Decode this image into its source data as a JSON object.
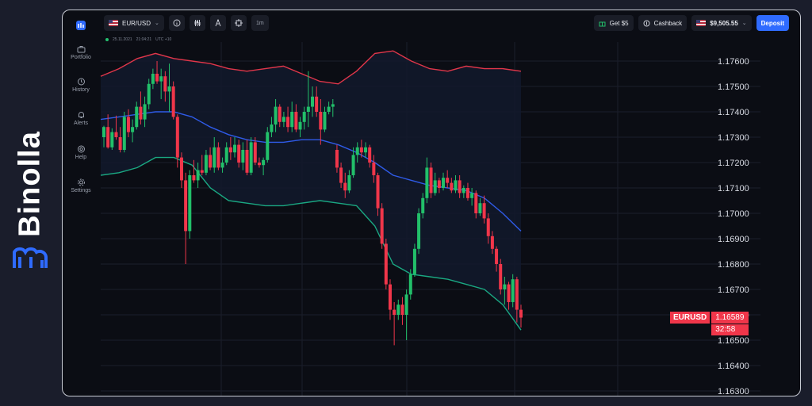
{
  "brand": {
    "name": "Binolla"
  },
  "sidebar": {
    "items": [
      {
        "label": "Portfolio",
        "icon": "briefcase-icon"
      },
      {
        "label": "History",
        "icon": "history-icon"
      },
      {
        "label": "Alerts",
        "icon": "bell-icon"
      },
      {
        "label": "Help",
        "icon": "lifebuoy-icon"
      },
      {
        "label": "Settings",
        "icon": "gear-icon"
      }
    ]
  },
  "toolbar": {
    "asset": "EUR/USD",
    "timeframe": "1m",
    "bonus_label": "Get $5",
    "cashback_label": "Cashback",
    "balance": "$9,505.55",
    "deposit_label": "Deposit"
  },
  "chart_meta": {
    "date": "25.11.2021",
    "time": "21:04:21",
    "timezone": "UTC +10"
  },
  "price_tag": {
    "symbol": "EURUSD",
    "price": "1.16589",
    "timer": "32:58"
  },
  "colors": {
    "up": "#22c06a",
    "down": "#f0364a",
    "upper_band": "#e0364a",
    "middle_band": "#2f5be8",
    "lower_band": "#1aa882",
    "accent": "#2f6bff"
  },
  "chart_data": {
    "type": "candlestick",
    "title": "",
    "y_ticks": [
      "1.17600",
      "1.17500",
      "1.17400",
      "1.17300",
      "1.17200",
      "1.17100",
      "1.17000",
      "1.16900",
      "1.16800",
      "1.16700",
      "1.16600",
      "1.16500",
      "1.16400",
      "1.16300"
    ],
    "ylim": [
      1.1628,
      1.1771
    ],
    "grid": true,
    "candles": [
      [
        1.173,
        1.17345,
        1.1734,
        1.1726
      ],
      [
        1.1734,
        1.1739,
        1.1726,
        1.17255
      ],
      [
        1.1726,
        1.17335,
        1.1732,
        1.1725
      ],
      [
        1.1732,
        1.17385,
        1.173,
        1.1729
      ],
      [
        1.173,
        1.1734,
        1.1725,
        1.1724
      ],
      [
        1.1725,
        1.174,
        1.1738,
        1.1724
      ],
      [
        1.1738,
        1.1741,
        1.1732,
        1.173
      ],
      [
        1.1732,
        1.1737,
        1.1734,
        1.1728
      ],
      [
        1.1734,
        1.1744,
        1.1742,
        1.1733
      ],
      [
        1.1742,
        1.1748,
        1.1737,
        1.1735
      ],
      [
        1.1737,
        1.1746,
        1.1743,
        1.1734
      ],
      [
        1.1743,
        1.1753,
        1.1751,
        1.1741
      ],
      [
        1.1751,
        1.1757,
        1.1755,
        1.1749
      ],
      [
        1.1755,
        1.176,
        1.1752,
        1.1751
      ],
      [
        1.1752,
        1.1757,
        1.1754,
        1.1745
      ],
      [
        1.1754,
        1.1756,
        1.1748,
        1.1744
      ],
      [
        1.1748,
        1.1759,
        1.175,
        1.174
      ],
      [
        1.175,
        1.1752,
        1.1738,
        1.1737
      ],
      [
        1.1738,
        1.1739,
        1.1722,
        1.1718
      ],
      [
        1.1722,
        1.1724,
        1.1713,
        1.171
      ],
      [
        1.1713,
        1.1716,
        1.1693,
        1.168
      ],
      [
        1.1693,
        1.1717,
        1.1715,
        1.169
      ],
      [
        1.1715,
        1.1721,
        1.1713,
        1.1712
      ],
      [
        1.1713,
        1.172,
        1.1717,
        1.171
      ],
      [
        1.1717,
        1.1723,
        1.1716,
        1.1715
      ],
      [
        1.1716,
        1.1725,
        1.1723,
        1.1715
      ],
      [
        1.1723,
        1.1726,
        1.1718,
        1.1717
      ],
      [
        1.1718,
        1.173,
        1.1726,
        1.1716
      ],
      [
        1.1726,
        1.1728,
        1.1718,
        1.1717
      ],
      [
        1.1718,
        1.1722,
        1.172,
        1.1716
      ],
      [
        1.172,
        1.1728,
        1.1726,
        1.1719
      ],
      [
        1.1726,
        1.173,
        1.1724,
        1.1721
      ],
      [
        1.1724,
        1.173,
        1.1727,
        1.1722
      ],
      [
        1.1727,
        1.1729,
        1.172,
        1.1718
      ],
      [
        1.172,
        1.1728,
        1.1725,
        1.1717
      ],
      [
        1.1725,
        1.1729,
        1.1716,
        1.1715
      ],
      [
        1.1716,
        1.173,
        1.1728,
        1.1715
      ],
      [
        1.1728,
        1.173,
        1.172,
        1.1719
      ],
      [
        1.172,
        1.1722,
        1.1719,
        1.1718
      ],
      [
        1.1719,
        1.1722,
        1.1721,
        1.1715
      ],
      [
        1.1721,
        1.1734,
        1.1732,
        1.172
      ],
      [
        1.1732,
        1.1738,
        1.1735,
        1.173
      ],
      [
        1.1735,
        1.1745,
        1.1742,
        1.1732
      ],
      [
        1.1742,
        1.1743,
        1.1736,
        1.1734
      ],
      [
        1.1736,
        1.174,
        1.1738,
        1.1734
      ],
      [
        1.1738,
        1.1742,
        1.1734,
        1.1732
      ],
      [
        1.1734,
        1.1744,
        1.174,
        1.1732
      ],
      [
        1.174,
        1.1743,
        1.1733,
        1.1732
      ],
      [
        1.1733,
        1.1738,
        1.1736,
        1.173
      ],
      [
        1.1736,
        1.1742,
        1.174,
        1.1733
      ],
      [
        1.174,
        1.1756,
        1.1742,
        1.1734
      ],
      [
        1.1742,
        1.175,
        1.1746,
        1.1738
      ],
      [
        1.1746,
        1.175,
        1.174,
        1.1738
      ],
      [
        1.174,
        1.1745,
        1.1733,
        1.1727
      ],
      [
        1.1733,
        1.1742,
        1.174,
        1.1732
      ],
      [
        1.174,
        1.1744,
        1.1742,
        1.1739
      ],
      [
        1.1742,
        1.1745,
        1.1743,
        1.1738
      ],
      [
        1.1725,
        1.1727,
        1.1718,
        1.1716
      ],
      [
        1.1718,
        1.172,
        1.1712,
        1.171
      ],
      [
        1.1712,
        1.1716,
        1.1709,
        1.1706
      ],
      [
        1.1709,
        1.1717,
        1.1715,
        1.1708
      ],
      [
        1.1715,
        1.1726,
        1.1723,
        1.1714
      ],
      [
        1.1723,
        1.1728,
        1.1726,
        1.172
      ],
      [
        1.1726,
        1.1729,
        1.1724,
        1.1722
      ],
      [
        1.1724,
        1.1728,
        1.1726,
        1.1722
      ],
      [
        1.1726,
        1.1727,
        1.172,
        1.1718
      ],
      [
        1.172,
        1.1723,
        1.1715,
        1.1712
      ],
      [
        1.1715,
        1.1716,
        1.1702,
        1.1699
      ],
      [
        1.1702,
        1.1704,
        1.1688,
        1.1686
      ],
      [
        1.1688,
        1.169,
        1.1672,
        1.167
      ],
      [
        1.1672,
        1.1674,
        1.1662,
        1.1658
      ],
      [
        1.1662,
        1.1665,
        1.166,
        1.1648
      ],
      [
        1.166,
        1.1666,
        1.1664,
        1.1658
      ],
      [
        1.1664,
        1.1667,
        1.166,
        1.1656
      ],
      [
        1.166,
        1.167,
        1.1668,
        1.165
      ],
      [
        1.1668,
        1.1678,
        1.1676,
        1.1666
      ],
      [
        1.1676,
        1.1688,
        1.1686,
        1.1675
      ],
      [
        1.1686,
        1.1702,
        1.17,
        1.1684
      ],
      [
        1.17,
        1.1708,
        1.1706,
        1.1698
      ],
      [
        1.1706,
        1.1722,
        1.1718,
        1.1704
      ],
      [
        1.1718,
        1.172,
        1.1708,
        1.1706
      ],
      [
        1.1708,
        1.1716,
        1.1713,
        1.1707
      ],
      [
        1.1713,
        1.1714,
        1.171,
        1.1708
      ],
      [
        1.171,
        1.1716,
        1.1714,
        1.1709
      ],
      [
        1.1714,
        1.1717,
        1.1712,
        1.171
      ],
      [
        1.1712,
        1.1714,
        1.1709,
        1.1708
      ],
      [
        1.1709,
        1.1715,
        1.1713,
        1.1708
      ],
      [
        1.1713,
        1.1715,
        1.1708,
        1.1706
      ],
      [
        1.1708,
        1.1711,
        1.171,
        1.1706
      ],
      [
        1.171,
        1.1712,
        1.1706,
        1.1705
      ],
      [
        1.1706,
        1.171,
        1.1708,
        1.1703
      ],
      [
        1.1708,
        1.1709,
        1.17,
        1.1698
      ],
      [
        1.17,
        1.1706,
        1.1704,
        1.1699
      ],
      [
        1.1704,
        1.1707,
        1.1698,
        1.1696
      ],
      [
        1.1698,
        1.17,
        1.1691,
        1.1688
      ],
      [
        1.1691,
        1.1693,
        1.1686,
        1.1684
      ],
      [
        1.1686,
        1.1687,
        1.168,
        1.1677
      ],
      [
        1.168,
        1.1682,
        1.167,
        1.1668
      ],
      [
        1.167,
        1.1675,
        1.1672,
        1.1664
      ],
      [
        1.1672,
        1.1673,
        1.1665,
        1.1662
      ],
      [
        1.1665,
        1.1676,
        1.1674,
        1.1663
      ],
      [
        1.1674,
        1.1675,
        1.1662,
        1.1657
      ],
      [
        1.1662,
        1.1664,
        1.16589,
        1.1655
      ]
    ],
    "bands": {
      "upper": [
        1.1754,
        1.1757,
        1.1761,
        1.1763,
        1.1761,
        1.176,
        1.1759,
        1.1757,
        1.1756,
        1.1757,
        1.1758,
        1.1755,
        1.1752,
        1.1751,
        1.1756,
        1.1763,
        1.1764,
        1.176,
        1.1757,
        1.1756,
        1.1758,
        1.1757,
        1.1757,
        1.1756
      ],
      "middle": [
        1.1737,
        1.1738,
        1.1739,
        1.174,
        1.174,
        1.1738,
        1.1734,
        1.1731,
        1.1729,
        1.1728,
        1.1728,
        1.1729,
        1.1729,
        1.1727,
        1.1724,
        1.172,
        1.1715,
        1.1713,
        1.1711,
        1.171,
        1.1709,
        1.1706,
        1.17,
        1.1693
      ],
      "lower": [
        1.1715,
        1.1716,
        1.1718,
        1.1722,
        1.1722,
        1.1719,
        1.171,
        1.1705,
        1.1704,
        1.1703,
        1.1703,
        1.1704,
        1.1705,
        1.1704,
        1.1703,
        1.1695,
        1.168,
        1.1676,
        1.1675,
        1.1674,
        1.1672,
        1.167,
        1.1664,
        1.1654
      ]
    }
  }
}
